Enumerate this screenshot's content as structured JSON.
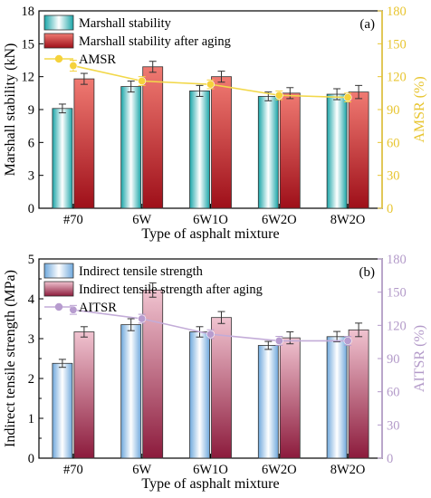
{
  "chart_data": [
    {
      "type": "bar",
      "panel_label": "(a)",
      "categories": [
        "#70",
        "6W",
        "6W1O",
        "6W2O",
        "8W2O"
      ],
      "xlabel": "Type of asphalt mixture",
      "ylabel": "Marshall stability (kN)",
      "y2label": "AMSR (%)",
      "ylim": [
        0,
        18
      ],
      "yticks": [
        0,
        3,
        6,
        9,
        12,
        15,
        18
      ],
      "y2lim": [
        0,
        180
      ],
      "y2ticks": [
        0,
        30,
        60,
        90,
        120,
        150,
        180
      ],
      "legend_position": "top-left",
      "colors": {
        "right_axis": "#e8c530",
        "line": "#f2d84a",
        "marker": "#f5d23c",
        "bar1": "#3fb9bc",
        "bar2": "#c8232e"
      },
      "series": [
        {
          "name": "Marshall stability",
          "kind": "bar",
          "axis": "left",
          "values": [
            9.1,
            11.1,
            10.7,
            10.2,
            10.4
          ],
          "errors": [
            0.4,
            0.5,
            0.5,
            0.4,
            0.5
          ]
        },
        {
          "name": "Marshall stability after aging",
          "kind": "bar",
          "axis": "left",
          "values": [
            11.8,
            12.9,
            12.0,
            10.5,
            10.6
          ],
          "errors": [
            0.5,
            0.5,
            0.5,
            0.5,
            0.6
          ]
        },
        {
          "name": "AMSR",
          "kind": "line",
          "axis": "right",
          "values": [
            130,
            116,
            113,
            103,
            101
          ],
          "errors": [
            5,
            4,
            4,
            4,
            4
          ]
        }
      ]
    },
    {
      "type": "bar",
      "panel_label": "(b)",
      "categories": [
        "#70",
        "6W",
        "6W1O",
        "6W2O",
        "8W2O"
      ],
      "xlabel": "Type of asphalt mixture",
      "ylabel": "Indirect tensile strength (MPa)",
      "y2label": "AITSR (%)",
      "ylim": [
        0,
        5
      ],
      "yticks": [
        0,
        0.5,
        1,
        1.5,
        2,
        2.5,
        3,
        3.5,
        4,
        4.5,
        5
      ],
      "ytick_labels": [
        "0",
        "",
        "1",
        "",
        "2",
        "",
        "3",
        "",
        "4",
        "",
        "5"
      ],
      "y2lim": [
        0,
        180
      ],
      "y2ticks": [
        0,
        30,
        60,
        90,
        120,
        150,
        180
      ],
      "legend_position": "top-left",
      "colors": {
        "right_axis": "#b39ac9",
        "line": "#c3acd8",
        "marker": "#b79ccf",
        "bar1": "#6fa8dc",
        "bar2": "#a51c4a"
      },
      "series": [
        {
          "name": "Indirect tensile strength",
          "kind": "bar",
          "axis": "left",
          "values": [
            2.38,
            3.35,
            3.17,
            2.83,
            3.05
          ],
          "errors": [
            0.1,
            0.15,
            0.13,
            0.1,
            0.13
          ]
        },
        {
          "name": "Indirect tensile strength after aging",
          "kind": "bar",
          "axis": "left",
          "values": [
            3.17,
            4.22,
            3.53,
            3.02,
            3.22
          ],
          "errors": [
            0.13,
            0.18,
            0.15,
            0.15,
            0.17
          ]
        },
        {
          "name": "AITSR",
          "kind": "line",
          "axis": "right",
          "values": [
            134,
            126,
            112,
            106,
            106
          ],
          "errors": [
            4,
            4,
            4,
            4,
            4
          ]
        }
      ]
    }
  ]
}
